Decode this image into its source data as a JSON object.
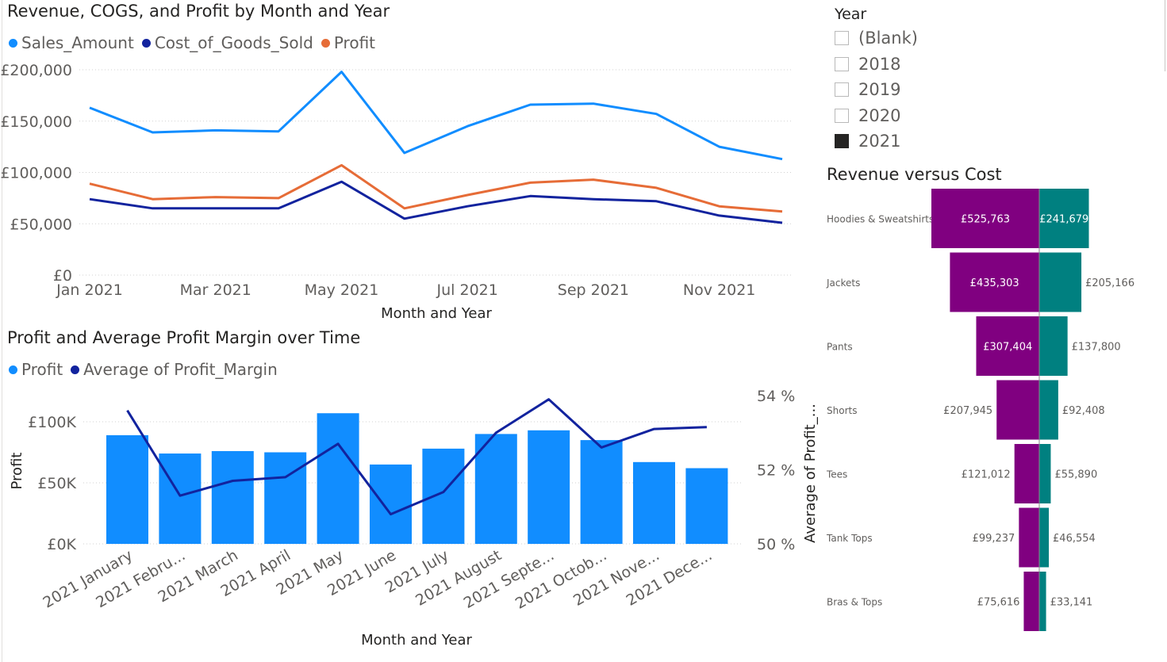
{
  "chart1": {
    "title": "Revenue, COGS, and Profit by Month and Year",
    "legend": [
      {
        "name": "Sales_Amount",
        "color": "#118dff"
      },
      {
        "name": "Cost_of_Goods_Sold",
        "color": "#12239e"
      },
      {
        "name": "Profit",
        "color": "#e66c37"
      }
    ],
    "chart_data": {
      "type": "line",
      "x": [
        "Jan 2021",
        "Feb 2021",
        "Mar 2021",
        "Apr 2021",
        "May 2021",
        "Jun 2021",
        "Jul 2021",
        "Aug 2021",
        "Sep 2021",
        "Oct 2021",
        "Nov 2021",
        "Dec 2021"
      ],
      "x_tick_labels": [
        "Jan 2021",
        "Mar 2021",
        "May 2021",
        "Jul 2021",
        "Sep 2021",
        "Nov 2021"
      ],
      "y_tick_labels": [
        "£0",
        "£50,000",
        "£100,000",
        "£150,000",
        "£200,000"
      ],
      "ylim": [
        0,
        200000
      ],
      "xlabel": "Month and Year",
      "ylabel": "",
      "series": [
        {
          "name": "Sales_Amount",
          "color": "#118dff",
          "values": [
            163000,
            139000,
            141000,
            140000,
            198000,
            119000,
            145000,
            166000,
            167000,
            157000,
            125000,
            113000
          ]
        },
        {
          "name": "Cost_of_Goods_Sold",
          "color": "#12239e",
          "values": [
            74000,
            65000,
            65000,
            65000,
            91000,
            55000,
            67000,
            77000,
            74000,
            72000,
            58000,
            51000
          ]
        },
        {
          "name": "Profit",
          "color": "#e66c37",
          "values": [
            89000,
            74000,
            76000,
            75000,
            107000,
            65000,
            78000,
            90000,
            93000,
            85000,
            67000,
            62000
          ]
        }
      ],
      "grid": true,
      "legend_position": "top-left"
    }
  },
  "chart2": {
    "title": "Profit and Average Profit Margin over Time",
    "legend": [
      {
        "name": "Profit",
        "color": "#118dff"
      },
      {
        "name": "Average of Profit_Margin",
        "color": "#12239e"
      }
    ],
    "chart_data": {
      "type": "bar",
      "categories": [
        "2021 January",
        "2021 Febru...",
        "2021 March",
        "2021 April",
        "2021 May",
        "2021 June",
        "2021 July",
        "2021 August",
        "2021 Septe...",
        "2021 Octob...",
        "2021 Nove...",
        "2021 Dece..."
      ],
      "series": [
        {
          "name": "Profit",
          "type": "bar",
          "color": "#118dff",
          "values": [
            89000,
            74000,
            76000,
            75000,
            107000,
            65000,
            78000,
            90000,
            93000,
            85000,
            67000,
            62000
          ]
        },
        {
          "name": "Average of Profit_Margin",
          "type": "line",
          "color": "#12239e",
          "values": [
            53.6,
            51.3,
            51.7,
            51.8,
            52.7,
            50.8,
            51.4,
            53.0,
            53.9,
            52.6,
            53.1,
            53.15
          ]
        }
      ],
      "y_tick_labels": [
        "£0K",
        "£50K",
        "£100K"
      ],
      "y2_tick_labels": [
        "50 %",
        "52 %",
        "54 %"
      ],
      "ylim": [
        0,
        100000
      ],
      "y2lim": [
        50,
        54
      ],
      "xlabel": "Month and Year",
      "ylabel": "Profit",
      "y2label": "Average of Profit_...",
      "grid": true,
      "legend_position": "top-left"
    }
  },
  "slicer": {
    "title": "Year",
    "options": [
      {
        "label": "(Blank)",
        "checked": false
      },
      {
        "label": "2018",
        "checked": false
      },
      {
        "label": "2019",
        "checked": false
      },
      {
        "label": "2020",
        "checked": false
      },
      {
        "label": "2021",
        "checked": true
      }
    ]
  },
  "chart3": {
    "title": "Revenue versus Cost",
    "chart_data": {
      "type": "bar",
      "subtype": "diverging-funnel",
      "categories": [
        "Hoodies & Sweatshirts",
        "Jackets",
        "Pants",
        "Shorts",
        "Tees",
        "Tank Tops",
        "Bras & Tops"
      ],
      "series": [
        {
          "name": "Revenue",
          "color": "#800080",
          "values": [
            525763,
            435303,
            307404,
            207945,
            121012,
            99237,
            75616
          ],
          "labels": [
            "£525,763",
            "£435,303",
            "£307,404",
            "£207,945",
            "£121,012",
            "£99,237",
            "£75,616"
          ]
        },
        {
          "name": "Cost",
          "color": "#008080",
          "values": [
            241679,
            205166,
            137800,
            92408,
            55890,
            46554,
            33141
          ],
          "labels": [
            "£241,679",
            "£205,166",
            "£137,800",
            "£92,408",
            "£55,890",
            "£46,554",
            "£33,141"
          ]
        }
      ]
    }
  }
}
